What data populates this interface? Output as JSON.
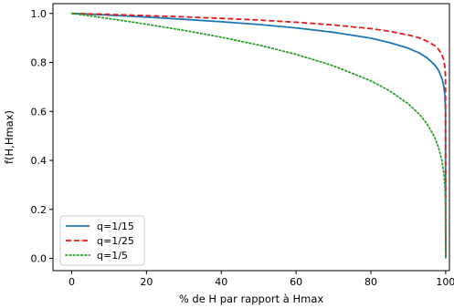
{
  "chart_data": {
    "type": "line",
    "title": "",
    "xlabel": "% de H par rapport à Hmax",
    "ylabel": "f(H,Hmax)",
    "xlim": [
      -5,
      101
    ],
    "ylim": [
      -0.05,
      1.04
    ],
    "x_ticks": [
      0,
      20,
      40,
      60,
      80,
      100
    ],
    "x_tick_labels": [
      "0",
      "20",
      "40",
      "60",
      "80",
      "100"
    ],
    "y_ticks": [
      0.0,
      0.2,
      0.4,
      0.6,
      0.8,
      1.0
    ],
    "y_tick_labels": [
      "0.0",
      "0.2",
      "0.4",
      "0.6",
      "0.8",
      "1.0"
    ],
    "grid": false,
    "legend_position": "lower-left",
    "series": [
      {
        "name": "q=1/15",
        "color": "#1f77b4",
        "style": "solid",
        "x": [
          0,
          5,
          10,
          20,
          30,
          40,
          50,
          60,
          70,
          80,
          85,
          90,
          93,
          95,
          97,
          98,
          99,
          99.5,
          99.8,
          99.95,
          100
        ],
        "y": [
          1.0,
          0.997,
          0.993,
          0.985,
          0.976,
          0.966,
          0.955,
          0.941,
          0.923,
          0.899,
          0.881,
          0.858,
          0.838,
          0.819,
          0.791,
          0.77,
          0.735,
          0.703,
          0.661,
          0.606,
          0.0
        ]
      },
      {
        "name": "q=1/25",
        "color": "#e41a1c",
        "style": "dashed",
        "x": [
          0,
          5,
          10,
          20,
          30,
          40,
          50,
          60,
          70,
          80,
          85,
          90,
          93,
          95,
          97,
          98,
          99,
          99.5,
          99.8,
          99.95,
          100
        ],
        "y": [
          1.0,
          0.998,
          0.996,
          0.991,
          0.986,
          0.98,
          0.973,
          0.964,
          0.953,
          0.938,
          0.927,
          0.912,
          0.9,
          0.887,
          0.869,
          0.855,
          0.832,
          0.809,
          0.78,
          0.74,
          0.0
        ]
      },
      {
        "name": "q=1/5",
        "color": "#2ca02c",
        "style": "dotted",
        "x": [
          0,
          5,
          10,
          20,
          30,
          40,
          50,
          60,
          70,
          80,
          85,
          90,
          93,
          95,
          97,
          98,
          99,
          99.5,
          99.8,
          99.95,
          100
        ],
        "y": [
          1.0,
          0.99,
          0.979,
          0.956,
          0.931,
          0.903,
          0.871,
          0.833,
          0.786,
          0.725,
          0.684,
          0.631,
          0.588,
          0.549,
          0.496,
          0.457,
          0.398,
          0.347,
          0.289,
          0.219,
          0.0
        ]
      }
    ]
  }
}
